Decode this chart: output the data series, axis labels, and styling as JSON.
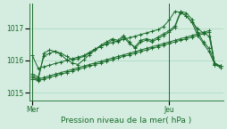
{
  "bg_color": "#d4ede0",
  "grid_color": "#a8d8c0",
  "line_color": "#1a6b2a",
  "xlabel": "Pression niveau de la mer( hPa )",
  "ylim": [
    1014.75,
    1017.75
  ],
  "yticks": [
    1015,
    1016,
    1017
  ],
  "xtick_pos": [
    0,
    24
  ],
  "xtick_labels": [
    "Mer",
    "Jeu"
  ],
  "series": [
    [
      1016.15,
      1015.75,
      1015.8,
      1015.85,
      1015.9,
      1015.95,
      1016.0,
      1016.05,
      1016.1,
      1016.15,
      1016.25,
      1016.35,
      1016.45,
      1016.5,
      1016.55,
      1016.6,
      1016.65,
      1016.7,
      1016.75,
      1016.8,
      1016.85,
      1016.9,
      1016.95,
      1017.05,
      1017.25,
      1017.52,
      1017.48,
      1017.38,
      1017.18,
      1016.98,
      1016.85,
      1016.75,
      1015.88,
      1015.82
    ],
    [
      1015.52,
      1015.42,
      1015.47,
      1015.52,
      1015.57,
      1015.62,
      1015.67,
      1015.72,
      1015.77,
      1015.82,
      1015.87,
      1015.92,
      1015.97,
      1016.02,
      1016.07,
      1016.12,
      1016.17,
      1016.22,
      1016.27,
      1016.32,
      1016.37,
      1016.42,
      1016.47,
      1016.52,
      1016.57,
      1016.62,
      1016.67,
      1016.72,
      1016.77,
      1016.82,
      1016.87,
      1016.92,
      1015.87,
      1015.82
    ],
    [
      1015.42,
      1015.37,
      1015.42,
      1015.47,
      1015.52,
      1015.57,
      1015.62,
      1015.67,
      1015.72,
      1015.77,
      1015.82,
      1015.87,
      1015.92,
      1015.97,
      1016.02,
      1016.07,
      1016.12,
      1016.17,
      1016.22,
      1016.27,
      1016.32,
      1016.37,
      1016.42,
      1016.47,
      1016.52,
      1016.57,
      1016.62,
      1016.67,
      1016.72,
      1016.77,
      1016.82,
      1016.87,
      1015.87,
      1015.82
    ],
    [
      1015.58,
      1015.48,
      1016.12,
      1016.22,
      1016.28,
      1016.22,
      1016.12,
      1016.02,
      1016.05,
      1016.12,
      1016.22,
      1016.35,
      1016.42,
      1016.52,
      1016.62,
      1016.57,
      1016.72,
      1016.52,
      1016.42,
      1016.62,
      1016.67,
      1016.62,
      1016.72,
      1016.82,
      1016.92,
      1017.07,
      1017.52,
      1017.47,
      1017.27,
      1016.87,
      1016.57,
      1016.37,
      1015.92,
      1015.82
    ],
    [
      1015.48,
      1015.38,
      1016.22,
      1016.32,
      1016.27,
      1016.17,
      1016.02,
      1015.92,
      1015.87,
      1016.02,
      1016.17,
      1016.32,
      1016.47,
      1016.57,
      1016.67,
      1016.62,
      1016.77,
      1016.57,
      1016.37,
      1016.57,
      1016.62,
      1016.57,
      1016.67,
      1016.77,
      1016.87,
      1017.02,
      1017.48,
      1017.38,
      1017.17,
      1016.77,
      1016.52,
      1016.27,
      1015.87,
      1015.77
    ]
  ]
}
